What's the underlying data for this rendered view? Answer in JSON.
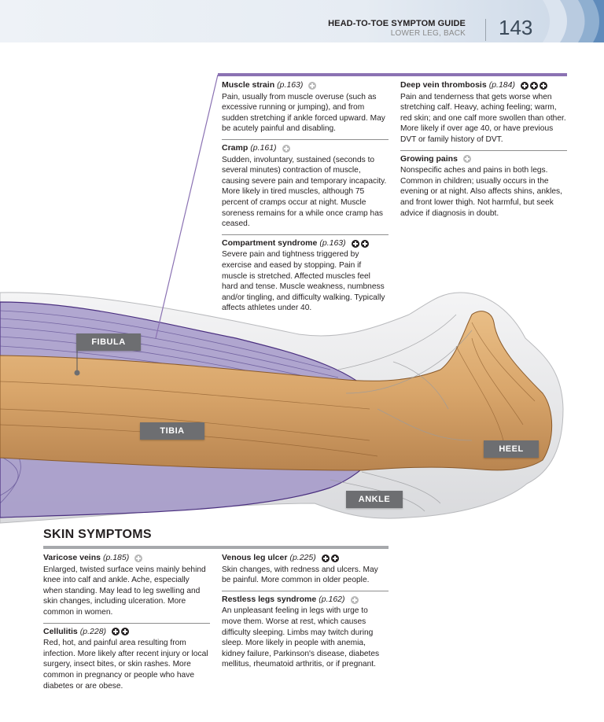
{
  "header": {
    "title": "HEAD-TO-TOE SYMPTOM GUIDE",
    "subtitle": "LOWER LEG, BACK",
    "page_number": "143"
  },
  "colors": {
    "purple_rule": "#8b72b3",
    "label_bg": "#6d6e71",
    "bone": "#d9a66b",
    "muscle_overlay": "#9b8ec4"
  },
  "labels": {
    "fibula": "FIBULA",
    "tibia": "TIBIA",
    "heel": "HEEL",
    "ankle": "ANKLE"
  },
  "column_middle": [
    {
      "title": "Muscle strain",
      "page": "(p.163)",
      "severity": [
        "light"
      ],
      "text": "Pain, usually from muscle overuse (such as excessive running or jumping), and from sudden stretching if ankle forced upward. May be acutely painful and disabling."
    },
    {
      "title": "Cramp",
      "page": "(p.161)",
      "severity": [
        "light"
      ],
      "text": "Sudden, involuntary, sustained (seconds to several minutes) contraction of muscle, causing severe pain and temporary incapacity. More likely in tired muscles, although 75 percent of cramps occur at night. Muscle soreness remains for a while once cramp has ceased."
    },
    {
      "title": "Compartment syndrome",
      "page": "(p.163)",
      "severity": [
        "dark",
        "dark"
      ],
      "text": "Severe pain and tightness triggered by exercise and eased by stopping. Pain if muscle is stretched. Affected muscles feel hard and tense. Muscle weakness, numbness and/or tingling, and difficulty walking. Typically affects athletes under 40."
    }
  ],
  "column_right": [
    {
      "title": "Deep vein thrombosis",
      "page": "(p.184)",
      "severity": [
        "dark",
        "dark",
        "dark"
      ],
      "text": "Pain and tenderness that gets worse when stretching calf. Heavy, aching feeling; warm, red skin; and one calf more swollen than other. More likely if over age 40, or have previous DVT or family history of DVT."
    },
    {
      "title": "Growing pains",
      "page": "",
      "severity": [
        "light"
      ],
      "text": "Nonspecific aches and pains in both legs. Common in children; usually occurs in the evening or at night. Also affects shins, ankles, and front lower thigh. Not harmful, but seek advice if diagnosis in doubt."
    }
  ],
  "skin": {
    "section_title": "SKIN SYMPTOMS",
    "left": [
      {
        "title": "Varicose veins",
        "page": "(p.185)",
        "severity": [
          "light"
        ],
        "text": "Enlarged, twisted surface veins mainly behind knee into calf and ankle. Ache, especially when standing. May lead to leg swelling and skin changes, including ulceration. More common in women."
      },
      {
        "title": "Cellulitis",
        "page": "(p.228)",
        "severity": [
          "dark",
          "dark"
        ],
        "text": "Red, hot, and painful area resulting from infection. More likely after recent injury or local surgery, insect bites, or skin rashes. More common in pregnancy or people who have diabetes or are obese."
      }
    ],
    "right": [
      {
        "title": "Venous leg ulcer",
        "page": "(p.225)",
        "severity": [
          "dark",
          "dark"
        ],
        "text": "Skin changes, with redness and ulcers. May be painful. More common in older people."
      },
      {
        "title": "Restless legs syndrome",
        "page": "(p.162)",
        "severity": [
          "light"
        ],
        "text": "An unpleasant feeling in legs with urge to move them. Worse at rest, which causes difficulty sleeping. Limbs may twitch during sleep. More likely in people with anemia, kidney failure, Parkinson's disease, diabetes mellitus, rheumatoid arthritis, or if pregnant."
      }
    ]
  }
}
